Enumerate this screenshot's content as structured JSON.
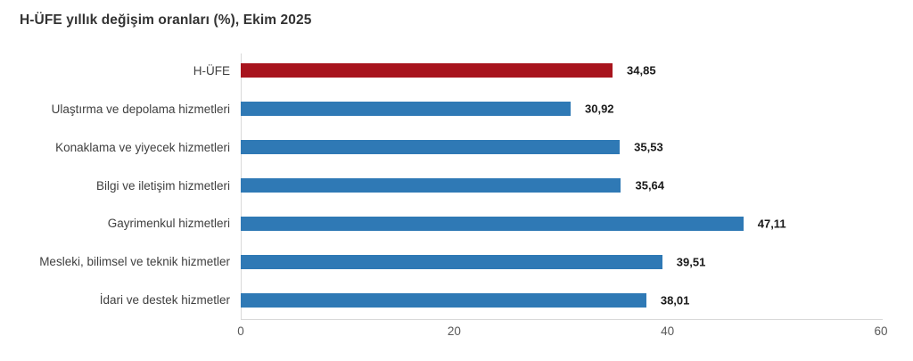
{
  "chart_data": {
    "type": "bar",
    "orientation": "horizontal",
    "title": "H-ÜFE yıllık değişim oranları (%), Ekim 2025",
    "categories": [
      "H-ÜFE",
      "Ulaştırma ve depolama hizmetleri",
      "Konaklama ve yiyecek hizmetleri",
      "Bilgi ve iletişim hizmetleri",
      "Gayrimenkul hizmetleri",
      "Mesleki, bilimsel ve teknik hizmetler",
      "İdari ve destek hizmetler"
    ],
    "values": [
      34.85,
      30.92,
      35.53,
      35.64,
      47.11,
      39.51,
      38.01
    ],
    "value_labels": [
      "34,85",
      "30,92",
      "35,53",
      "35,64",
      "47,11",
      "39,51",
      "38,01"
    ],
    "xlabel": "",
    "ylabel": "",
    "xlim": [
      0,
      60
    ],
    "x_ticks": [
      0,
      20,
      40,
      60
    ],
    "x_tick_labels": [
      "0",
      "20",
      "40",
      "60"
    ],
    "grid": false,
    "legend": null,
    "highlight_index": 0,
    "highlight_color": "#a8141d",
    "bar_color": "#2f79b5",
    "axis_line_color": "#d9d9d9",
    "title_color": "#333333",
    "category_label_color": "#404040",
    "tick_label_color": "#595959",
    "value_label_color": "#1a1a1a",
    "background_color": "#ffffff"
  }
}
